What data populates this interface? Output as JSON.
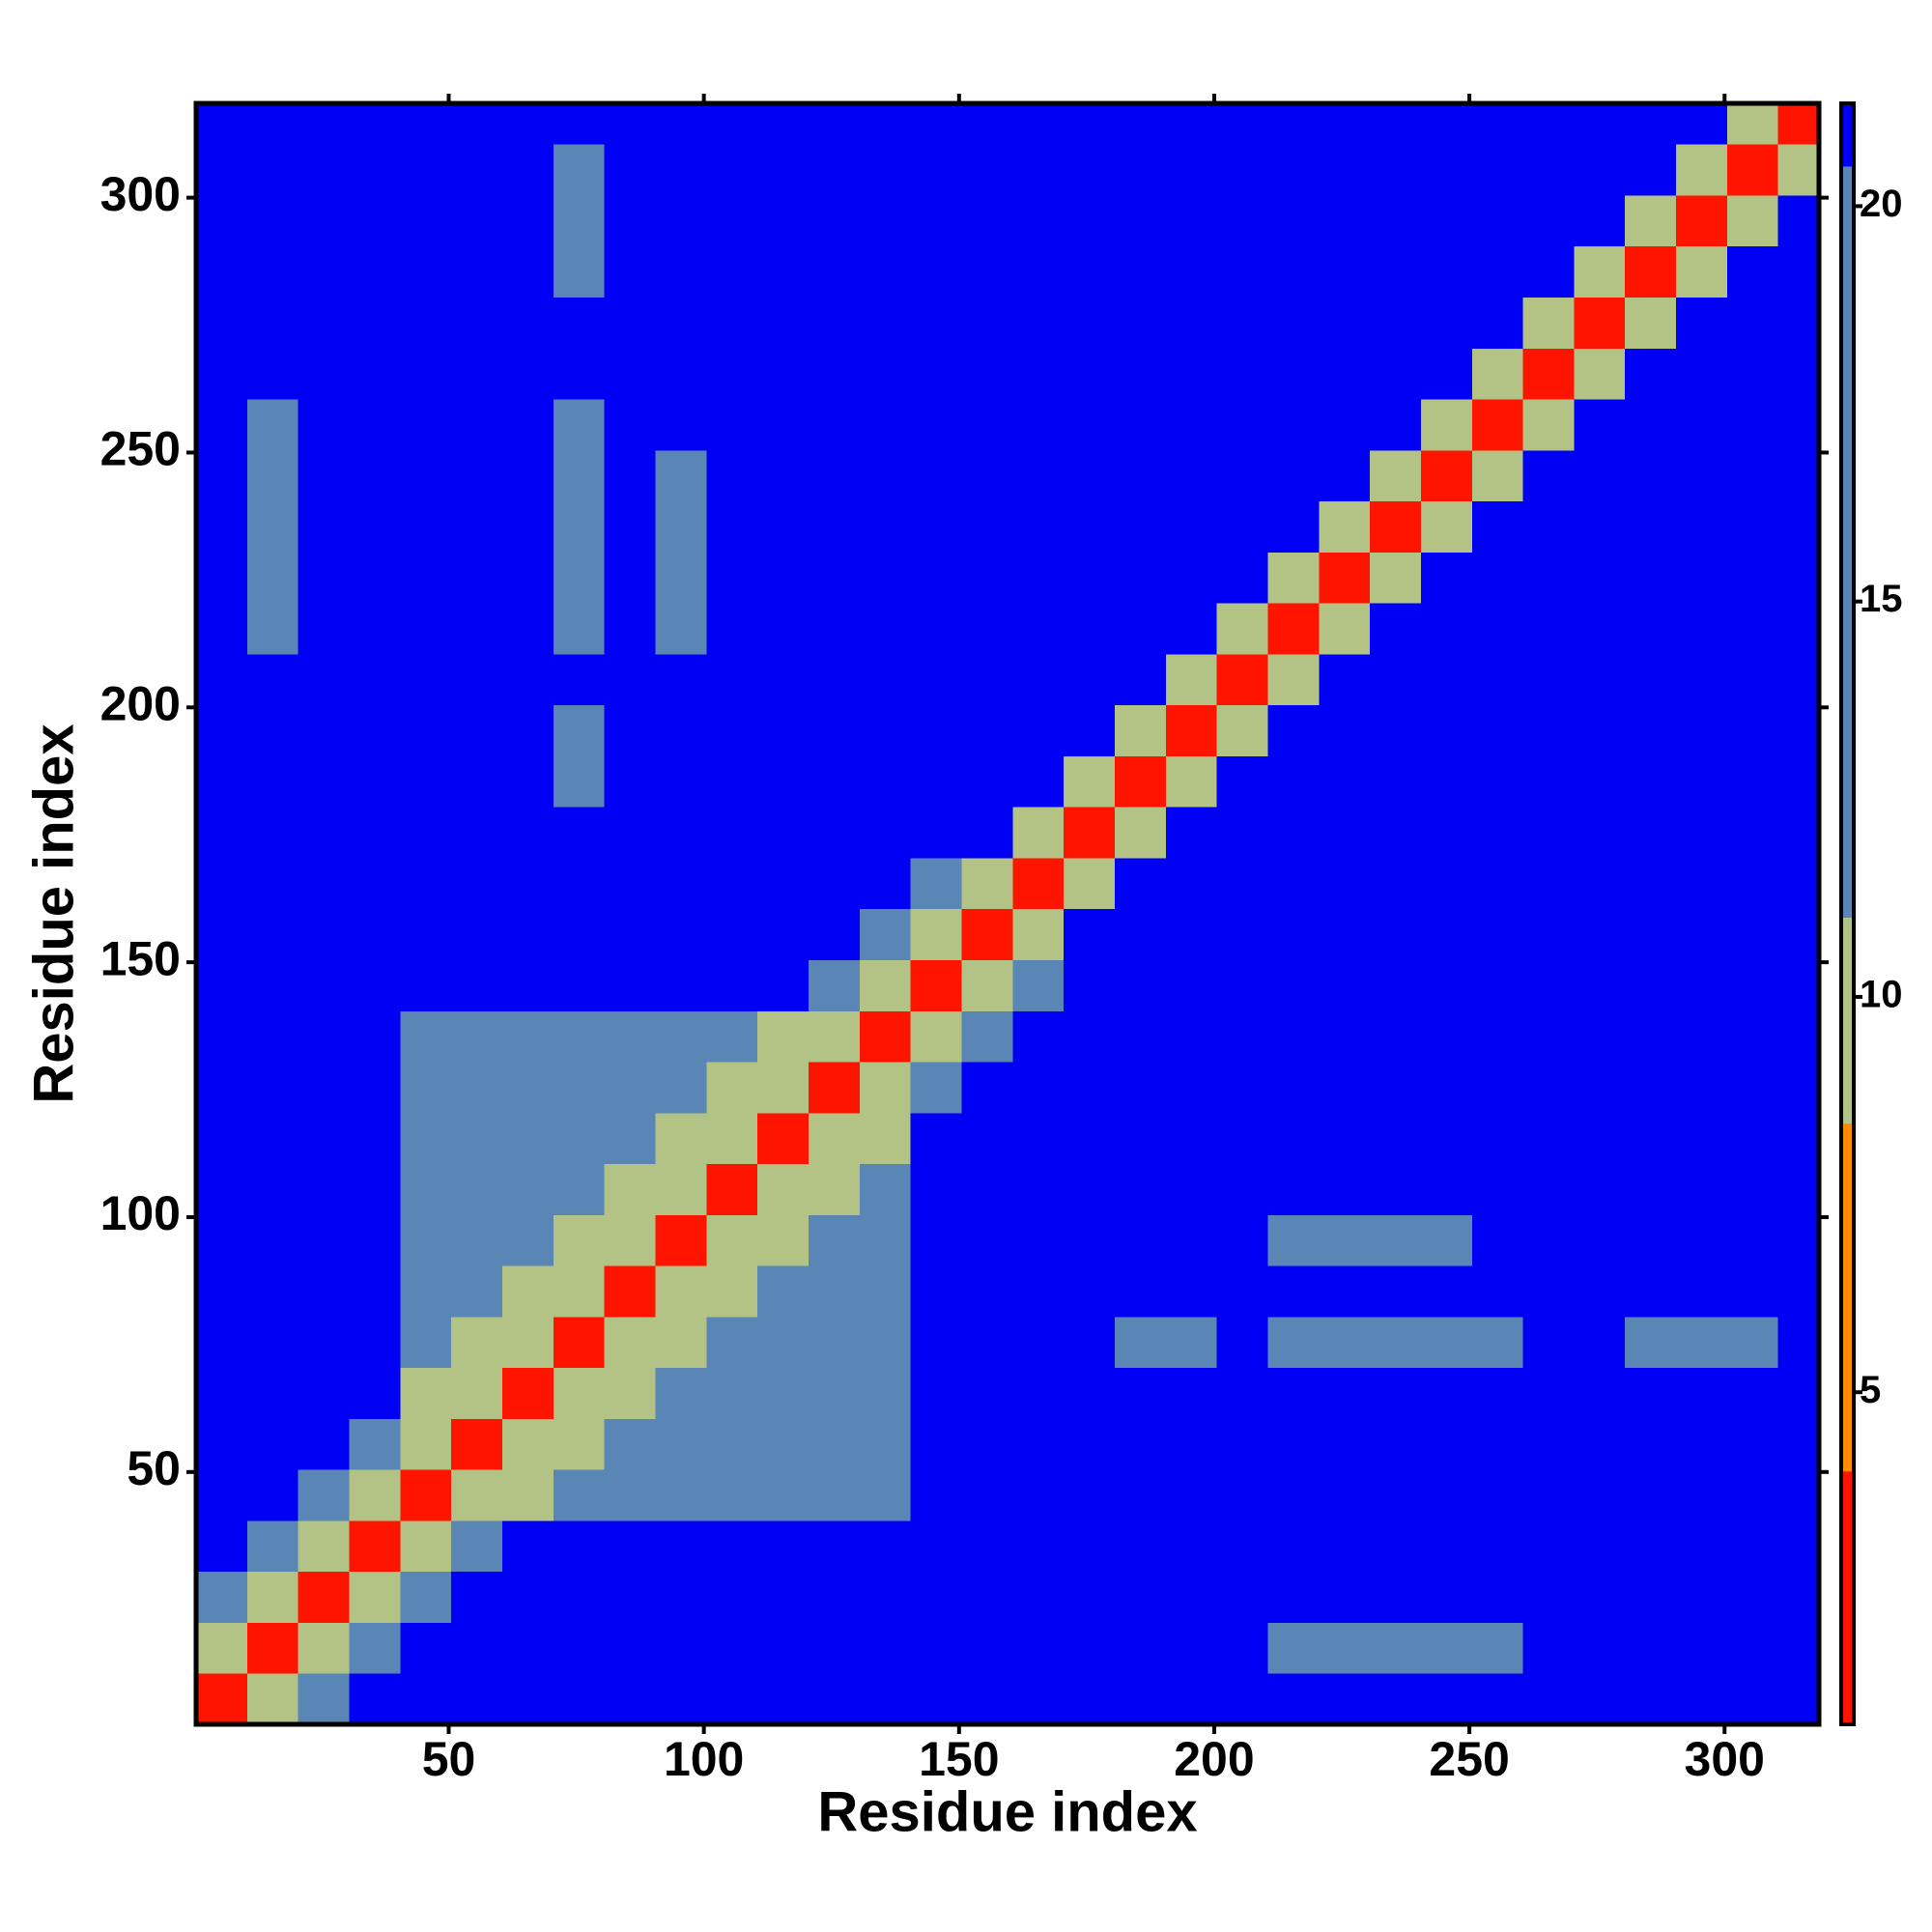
{
  "chart_data": {
    "type": "heatmap",
    "xlabel": "Residue index",
    "ylabel": "Residue index",
    "xlim": [
      0.5,
      318.5
    ],
    "ylim": [
      0.5,
      318.5
    ],
    "xticks": [
      50,
      100,
      150,
      200,
      250,
      300
    ],
    "yticks": [
      50,
      100,
      150,
      200,
      250,
      300
    ],
    "clim": [
      0.8,
      21.3
    ],
    "cticks": [
      5,
      10,
      15,
      20
    ],
    "colorscale": [
      {
        "max": 4,
        "color": "#ff1400"
      },
      {
        "max": 8.4,
        "color": "#ff8c00"
      },
      {
        "max": 11,
        "color": "#b3c285"
      },
      {
        "max": 20.5,
        "color": "#5a86b6"
      },
      {
        "max": 21.3,
        "color": "#0000f5"
      }
    ],
    "xedges": [
      0.5,
      10.5,
      20.5,
      30.5,
      40.5,
      50.5,
      60.5,
      70.5,
      80.5,
      90.5,
      100.5,
      110.5,
      120.5,
      130.5,
      140.5,
      150.5,
      160.5,
      170.5,
      180.5,
      190.5,
      200.5,
      210.5,
      220.5,
      230.5,
      240.5,
      250.5,
      260.5,
      270.5,
      280.5,
      290.5,
      300.5,
      310.5,
      318.5
    ],
    "yedges": [
      0.5,
      10.5,
      20.5,
      30.5,
      40.5,
      50.5,
      60.5,
      70.5,
      80.5,
      90.5,
      100.5,
      110.5,
      120.5,
      130.5,
      140.5,
      150.5,
      160.5,
      170.5,
      180.5,
      190.5,
      200.5,
      210.5,
      220.5,
      230.5,
      240.5,
      250.5,
      260.5,
      270.5,
      280.5,
      290.5,
      300.5,
      310.5,
      318.5
    ],
    "z": [
      [
        3,
        9,
        16,
        21,
        21,
        21,
        21,
        21,
        21,
        21,
        21,
        21,
        21,
        21,
        21,
        21,
        21,
        21,
        21,
        21,
        21,
        21,
        21,
        21,
        21,
        21,
        21,
        21,
        21,
        21,
        21,
        21
      ],
      [
        9,
        3,
        9,
        16,
        21,
        21,
        21,
        21,
        21,
        21,
        21,
        21,
        21,
        21,
        21,
        21,
        21,
        21,
        21,
        21,
        21,
        17,
        17,
        17,
        17,
        17,
        21,
        21,
        21,
        21,
        21,
        21
      ],
      [
        16,
        9,
        3,
        9,
        16,
        21,
        21,
        21,
        21,
        21,
        21,
        21,
        21,
        21,
        21,
        21,
        21,
        21,
        21,
        21,
        21,
        21,
        21,
        21,
        21,
        21,
        21,
        21,
        21,
        21,
        21,
        21
      ],
      [
        21,
        16,
        9,
        3,
        9,
        16,
        21,
        21,
        21,
        21,
        21,
        21,
        21,
        21,
        21,
        21,
        21,
        21,
        21,
        21,
        21,
        21,
        21,
        21,
        21,
        21,
        21,
        21,
        21,
        21,
        21,
        21
      ],
      [
        21,
        21,
        16,
        9,
        3,
        9,
        11,
        15,
        15,
        15,
        15,
        15,
        15,
        15,
        21,
        21,
        21,
        21,
        21,
        21,
        21,
        21,
        21,
        21,
        21,
        21,
        21,
        21,
        21,
        21,
        21,
        21
      ],
      [
        21,
        21,
        21,
        16,
        9,
        3,
        9,
        11,
        15,
        15,
        15,
        15,
        15,
        15,
        21,
        21,
        21,
        21,
        21,
        21,
        21,
        21,
        21,
        21,
        21,
        21,
        21,
        21,
        21,
        21,
        21,
        21
      ],
      [
        21,
        21,
        21,
        21,
        11,
        9,
        3,
        9,
        11,
        15,
        15,
        15,
        15,
        15,
        21,
        21,
        21,
        21,
        21,
        21,
        21,
        21,
        21,
        21,
        21,
        21,
        21,
        21,
        21,
        21,
        21,
        21
      ],
      [
        21,
        21,
        21,
        21,
        15,
        11,
        9,
        3,
        9,
        11,
        15,
        15,
        15,
        15,
        21,
        21,
        21,
        21,
        19,
        19,
        21,
        16,
        16,
        16,
        16,
        16,
        21,
        21,
        18,
        18,
        18,
        21
      ],
      [
        21,
        21,
        21,
        21,
        15,
        15,
        11,
        9,
        3,
        9,
        11,
        15,
        15,
        15,
        21,
        21,
        21,
        21,
        21,
        21,
        21,
        21,
        21,
        21,
        21,
        21,
        21,
        21,
        21,
        21,
        21,
        21
      ],
      [
        21,
        21,
        21,
        21,
        15,
        15,
        15,
        11,
        9,
        3,
        9,
        11,
        15,
        15,
        21,
        21,
        21,
        21,
        21,
        21,
        21,
        19,
        19,
        19,
        19,
        21,
        21,
        21,
        21,
        21,
        21,
        21
      ],
      [
        21,
        21,
        21,
        21,
        15,
        15,
        15,
        15,
        11,
        9,
        3,
        9,
        11,
        15,
        21,
        21,
        21,
        21,
        21,
        21,
        21,
        21,
        21,
        21,
        21,
        21,
        21,
        21,
        21,
        21,
        21,
        21
      ],
      [
        21,
        21,
        21,
        21,
        15,
        15,
        15,
        15,
        15,
        11,
        9,
        3,
        9,
        11,
        21,
        21,
        21,
        21,
        21,
        21,
        21,
        21,
        21,
        21,
        21,
        21,
        21,
        21,
        21,
        21,
        21,
        21
      ],
      [
        21,
        21,
        21,
        21,
        15,
        15,
        15,
        15,
        15,
        15,
        11,
        9,
        3,
        9,
        16,
        21,
        21,
        21,
        21,
        21,
        21,
        21,
        21,
        21,
        21,
        21,
        21,
        21,
        21,
        21,
        21,
        21
      ],
      [
        21,
        21,
        21,
        21,
        15,
        15,
        15,
        15,
        15,
        15,
        15,
        11,
        9,
        3,
        9,
        16,
        21,
        21,
        21,
        21,
        21,
        21,
        21,
        21,
        21,
        21,
        21,
        21,
        21,
        21,
        21,
        21
      ],
      [
        21,
        21,
        21,
        21,
        21,
        21,
        21,
        21,
        21,
        21,
        21,
        21,
        16,
        9,
        3,
        9,
        16,
        21,
        21,
        21,
        21,
        21,
        21,
        21,
        21,
        21,
        21,
        21,
        21,
        21,
        21,
        21
      ],
      [
        21,
        21,
        21,
        21,
        21,
        21,
        21,
        21,
        21,
        21,
        21,
        21,
        21,
        16,
        9,
        3,
        9,
        21,
        21,
        21,
        21,
        21,
        21,
        21,
        21,
        21,
        21,
        21,
        21,
        21,
        21,
        21
      ],
      [
        21,
        21,
        21,
        21,
        21,
        21,
        21,
        21,
        21,
        21,
        21,
        21,
        21,
        21,
        16,
        9,
        3,
        9,
        21,
        21,
        21,
        21,
        21,
        21,
        21,
        21,
        21,
        21,
        21,
        21,
        21,
        21
      ],
      [
        21,
        21,
        21,
        21,
        21,
        21,
        21,
        21,
        21,
        21,
        21,
        21,
        21,
        21,
        21,
        21,
        9,
        3,
        9,
        21,
        21,
        21,
        21,
        21,
        21,
        21,
        21,
        21,
        21,
        21,
        21,
        21
      ],
      [
        21,
        21,
        21,
        21,
        21,
        21,
        21,
        19,
        21,
        21,
        21,
        21,
        21,
        21,
        21,
        21,
        21,
        9,
        3,
        9,
        21,
        21,
        21,
        21,
        21,
        21,
        21,
        21,
        21,
        21,
        21,
        21
      ],
      [
        21,
        21,
        21,
        21,
        21,
        21,
        21,
        19,
        21,
        21,
        21,
        21,
        21,
        21,
        21,
        21,
        21,
        21,
        9,
        3,
        9,
        21,
        21,
        21,
        21,
        21,
        21,
        21,
        21,
        21,
        21,
        21
      ],
      [
        21,
        21,
        21,
        21,
        21,
        21,
        21,
        21,
        21,
        21,
        21,
        21,
        21,
        21,
        21,
        21,
        21,
        21,
        21,
        9,
        3,
        9,
        21,
        21,
        21,
        21,
        21,
        21,
        21,
        21,
        21,
        21
      ],
      [
        21,
        17,
        21,
        21,
        21,
        21,
        21,
        16,
        21,
        19,
        21,
        21,
        21,
        21,
        21,
        21,
        21,
        21,
        21,
        21,
        9,
        3,
        9,
        21,
        21,
        21,
        21,
        21,
        21,
        21,
        21,
        21
      ],
      [
        21,
        17,
        21,
        21,
        21,
        21,
        21,
        16,
        21,
        19,
        21,
        21,
        21,
        21,
        21,
        21,
        21,
        21,
        21,
        21,
        21,
        9,
        3,
        9,
        21,
        21,
        21,
        21,
        21,
        21,
        21,
        21
      ],
      [
        21,
        17,
        21,
        21,
        21,
        21,
        21,
        16,
        21,
        19,
        21,
        21,
        21,
        21,
        21,
        21,
        21,
        21,
        21,
        21,
        21,
        21,
        9,
        3,
        9,
        21,
        21,
        21,
        21,
        21,
        21,
        21
      ],
      [
        21,
        17,
        21,
        21,
        21,
        21,
        21,
        16,
        21,
        19,
        21,
        21,
        21,
        21,
        21,
        21,
        21,
        21,
        21,
        21,
        21,
        21,
        21,
        9,
        3,
        9,
        21,
        21,
        21,
        21,
        21,
        21
      ],
      [
        21,
        17,
        21,
        21,
        21,
        21,
        21,
        16,
        21,
        21,
        21,
        21,
        21,
        21,
        21,
        21,
        21,
        21,
        21,
        21,
        21,
        21,
        21,
        21,
        9,
        3,
        9,
        21,
        21,
        21,
        21,
        21
      ],
      [
        21,
        21,
        21,
        21,
        21,
        21,
        21,
        21,
        21,
        21,
        21,
        21,
        21,
        21,
        21,
        21,
        21,
        21,
        21,
        21,
        21,
        21,
        21,
        21,
        21,
        9,
        3,
        9,
        21,
        21,
        21,
        21
      ],
      [
        21,
        21,
        21,
        21,
        21,
        21,
        21,
        21,
        21,
        21,
        21,
        21,
        21,
        21,
        21,
        21,
        21,
        21,
        21,
        21,
        21,
        21,
        21,
        21,
        21,
        21,
        9,
        3,
        9,
        21,
        21,
        21
      ],
      [
        21,
        21,
        21,
        21,
        21,
        21,
        21,
        18,
        21,
        21,
        21,
        21,
        21,
        21,
        21,
        21,
        21,
        21,
        21,
        21,
        21,
        21,
        21,
        21,
        21,
        21,
        21,
        9,
        3,
        9,
        21,
        21
      ],
      [
        21,
        21,
        21,
        21,
        21,
        21,
        21,
        18,
        21,
        21,
        21,
        21,
        21,
        21,
        21,
        21,
        21,
        21,
        21,
        21,
        21,
        21,
        21,
        21,
        21,
        21,
        21,
        21,
        9,
        3,
        9,
        21
      ],
      [
        21,
        21,
        21,
        21,
        21,
        21,
        21,
        18,
        21,
        21,
        21,
        21,
        21,
        21,
        21,
        21,
        21,
        21,
        21,
        21,
        21,
        21,
        21,
        21,
        21,
        21,
        21,
        21,
        21,
        9,
        3,
        9
      ],
      [
        21,
        21,
        21,
        21,
        21,
        21,
        21,
        21,
        21,
        21,
        21,
        21,
        21,
        21,
        21,
        21,
        21,
        21,
        21,
        21,
        21,
        21,
        21,
        21,
        21,
        21,
        21,
        21,
        21,
        21,
        9,
        3
      ]
    ]
  }
}
